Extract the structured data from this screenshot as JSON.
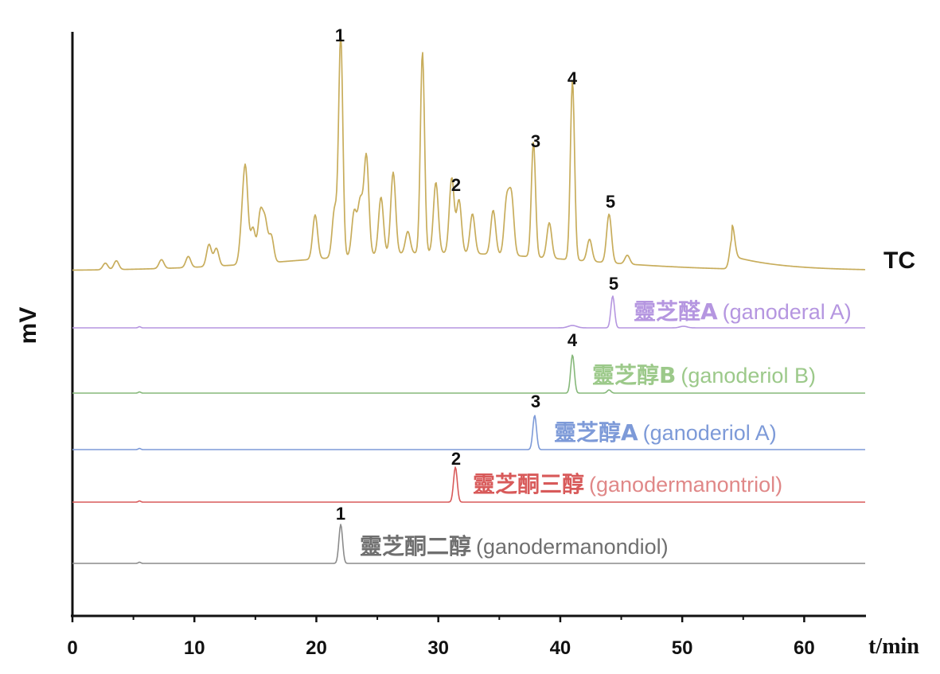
{
  "chart_data": {
    "type": "line",
    "title": "",
    "xlabel": "t/min",
    "ylabel": "mV",
    "xlim": [
      0,
      65
    ],
    "x_ticks": [
      0,
      10,
      20,
      30,
      40,
      50,
      60
    ],
    "x_tick_labels": [
      "0",
      "10",
      "20",
      "30",
      "40",
      "50",
      "60"
    ],
    "grid": false,
    "series": [
      {
        "name": "TC",
        "color": "#c8ad5c",
        "peaks": [
          {
            "t": 2.7,
            "h": 0.03
          },
          {
            "t": 3.6,
            "h": 0.04
          },
          {
            "t": 7.3,
            "h": 0.04
          },
          {
            "t": 9.5,
            "h": 0.05
          },
          {
            "t": 11.2,
            "h": 0.1
          },
          {
            "t": 11.8,
            "h": 0.08
          },
          {
            "t": 13.9,
            "h": 0.14
          },
          {
            "t": 14.2,
            "h": 0.4
          },
          {
            "t": 14.8,
            "h": 0.16
          },
          {
            "t": 15.4,
            "h": 0.22
          },
          {
            "t": 15.8,
            "h": 0.18
          },
          {
            "t": 16.3,
            "h": 0.12
          },
          {
            "t": 19.9,
            "h": 0.2
          },
          {
            "t": 21.5,
            "h": 0.22
          },
          {
            "t": 22.0,
            "h": 1.0
          },
          {
            "t": 23.1,
            "h": 0.2
          },
          {
            "t": 23.6,
            "h": 0.24
          },
          {
            "t": 24.1,
            "h": 0.45
          },
          {
            "t": 25.3,
            "h": 0.26
          },
          {
            "t": 26.3,
            "h": 0.37
          },
          {
            "t": 27.5,
            "h": 0.1
          },
          {
            "t": 28.7,
            "h": 0.91
          },
          {
            "t": 29.8,
            "h": 0.32
          },
          {
            "t": 31.1,
            "h": 0.34
          },
          {
            "t": 31.7,
            "h": 0.24
          },
          {
            "t": 32.8,
            "h": 0.18
          },
          {
            "t": 34.5,
            "h": 0.2
          },
          {
            "t": 35.6,
            "h": 0.24
          },
          {
            "t": 36.0,
            "h": 0.26
          },
          {
            "t": 37.8,
            "h": 0.52
          },
          {
            "t": 39.1,
            "h": 0.16
          },
          {
            "t": 41.0,
            "h": 0.81
          },
          {
            "t": 42.4,
            "h": 0.1
          },
          {
            "t": 44.0,
            "h": 0.22
          },
          {
            "t": 45.5,
            "h": 0.04
          },
          {
            "t": 54.1,
            "h": 0.14
          }
        ]
      },
      {
        "name": "ganoderal A",
        "color": "#b596e0",
        "peak_time": 44.3
      },
      {
        "name": "ganoderiol B",
        "color": "#86b87a",
        "peak_time": 41.0
      },
      {
        "name": "ganoderiol A",
        "color": "#7d9ad8",
        "peak_time": 37.9
      },
      {
        "name": "ganodermanontriol",
        "color": "#d85a5a",
        "peak_time": 31.4
      },
      {
        "name": "ganodermanondiol",
        "color": "#8c8c8c",
        "peak_time": 22.0
      }
    ],
    "peak_labels": [
      "1",
      "2",
      "3",
      "4",
      "5"
    ],
    "legend": "inline, right of each trace"
  },
  "traces": {
    "tc": {
      "label": "TC"
    },
    "t5": {
      "num": "5",
      "cn": "靈芝醛A",
      "en": "(ganoderal A)"
    },
    "t4": {
      "num": "4",
      "cn": "靈芝醇B",
      "en": "(ganoderiol B)"
    },
    "t3": {
      "num": "3",
      "cn": "靈芝醇A",
      "en": "(ganoderiol A)"
    },
    "t2": {
      "num": "2",
      "cn": "靈芝酮三醇",
      "en": "(ganodermanontriol)"
    },
    "t1": {
      "num": "1",
      "cn": "靈芝酮二醇",
      "en": "(ganodermanondiol)"
    }
  }
}
